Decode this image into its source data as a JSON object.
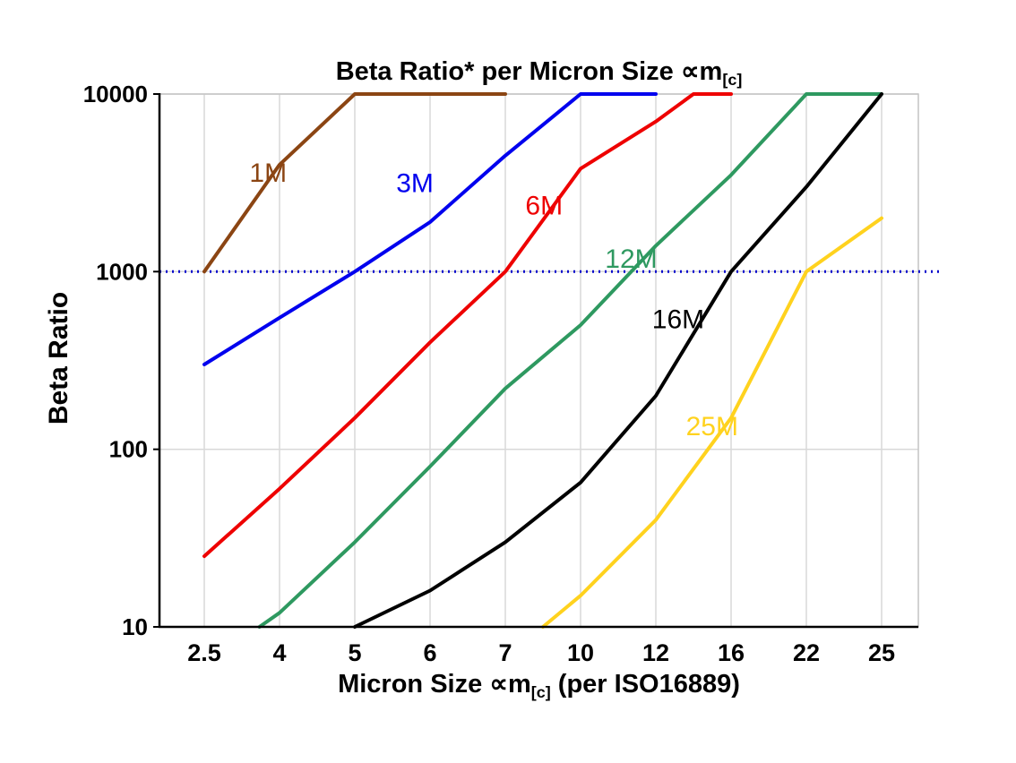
{
  "chart_data": {
    "type": "line",
    "title": "Beta Ratio* per Micron Size ∝m[c]",
    "title_parts": {
      "main": "Beta Ratio* per Micron Size ∝m",
      "sub": "[c]"
    },
    "xlabel": "Micron Size ∝m[c] (per ISO16889)",
    "xlabel_parts": {
      "pre": "Micron Size ∝m",
      "sub": "[c]",
      "post": " (per ISO16889)"
    },
    "ylabel": "Beta Ratio",
    "x_categories": [
      2.5,
      4,
      5,
      6,
      7,
      10,
      12,
      16,
      22,
      25
    ],
    "x_tick_labels": [
      "2.5",
      "4",
      "5",
      "6",
      "7",
      "10",
      "12",
      "16",
      "22",
      "25"
    ],
    "y_scale": "log",
    "ylim": [
      10,
      10000
    ],
    "y_ticks": [
      10,
      100,
      1000,
      10000
    ],
    "y_tick_labels": [
      "10",
      "100",
      "1000",
      "10000"
    ],
    "grid": {
      "vertical": true,
      "horizontal": true,
      "color": "#d9d9d9"
    },
    "legend_position": "labels-on-lines",
    "reference_line": {
      "y": 1000,
      "color": "#0000cc",
      "style": "dotted"
    },
    "series": [
      {
        "name": "1M",
        "color": "#8b4513",
        "label_pos": {
          "x": 3.4,
          "y": 3200
        },
        "points": [
          [
            2.5,
            1000
          ],
          [
            4,
            4000
          ],
          [
            5,
            10000
          ],
          [
            6,
            10000
          ],
          [
            7,
            10000
          ]
        ]
      },
      {
        "name": "3M",
        "color": "#0000ee",
        "label_pos": {
          "x": 5.55,
          "y": 2800
        },
        "points": [
          [
            2.5,
            300
          ],
          [
            4,
            550
          ],
          [
            5,
            1000
          ],
          [
            6,
            1900
          ],
          [
            7,
            4500
          ],
          [
            10,
            10000
          ],
          [
            12,
            10000
          ]
        ]
      },
      {
        "name": "6M",
        "color": "#ee0000",
        "label_pos": {
          "x": 7.8,
          "y": 2100
        },
        "points": [
          [
            2.5,
            25
          ],
          [
            4,
            60
          ],
          [
            5,
            150
          ],
          [
            6,
            400
          ],
          [
            7,
            1000
          ],
          [
            10,
            3800
          ],
          [
            12,
            7000
          ],
          [
            14,
            10000
          ],
          [
            16,
            10000
          ]
        ]
      },
      {
        "name": "12M",
        "color": "#2e9960",
        "label_pos": {
          "x": 10.65,
          "y": 1050
        },
        "points": [
          [
            3.6,
            10
          ],
          [
            4,
            12
          ],
          [
            5,
            30
          ],
          [
            6,
            80
          ],
          [
            7,
            220
          ],
          [
            10,
            500
          ],
          [
            12,
            1400
          ],
          [
            16,
            3500
          ],
          [
            22,
            10000
          ],
          [
            25,
            10000
          ]
        ]
      },
      {
        "name": "16M",
        "color": "#000000",
        "label_pos": {
          "x": 11.9,
          "y": 480
        },
        "points": [
          [
            5,
            10
          ],
          [
            6,
            16
          ],
          [
            7,
            30
          ],
          [
            10,
            65
          ],
          [
            12,
            200
          ],
          [
            16,
            1000
          ],
          [
            22,
            3000
          ],
          [
            25,
            10000
          ]
        ]
      },
      {
        "name": "25M",
        "color": "#ffd21e",
        "label_pos": {
          "x": 13.6,
          "y": 120
        },
        "points": [
          [
            8.5,
            10
          ],
          [
            10,
            15
          ],
          [
            12,
            40
          ],
          [
            16,
            150
          ],
          [
            22,
            1000
          ],
          [
            25,
            2000
          ]
        ]
      }
    ]
  }
}
